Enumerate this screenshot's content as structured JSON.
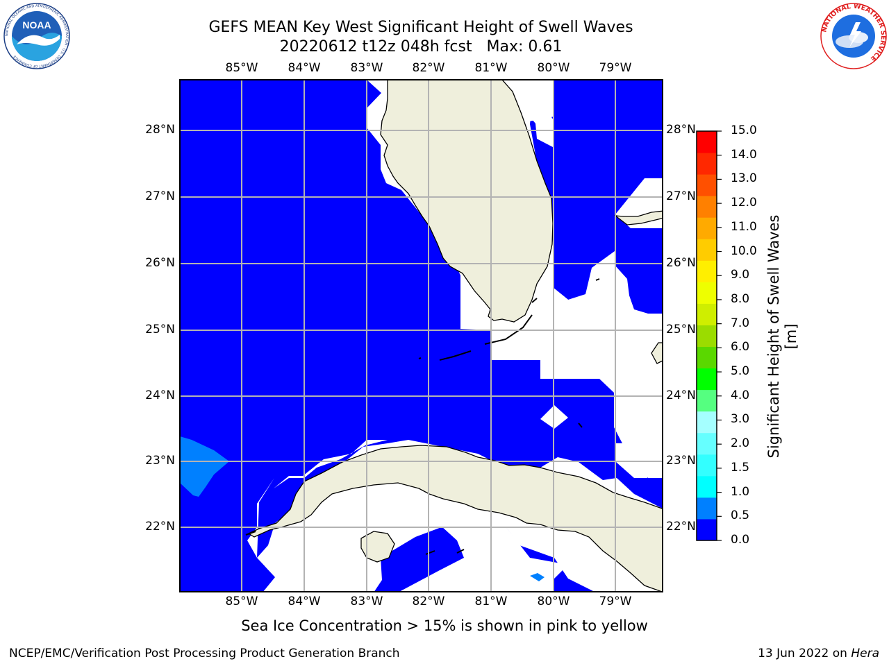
{
  "title": {
    "line1": "GEFS MEAN Key West Significant Height of Swell Waves",
    "line2": "20220612 t12z 048h fcst   Max: 0.61"
  },
  "map": {
    "region": "Key West",
    "colors": {
      "ocean_fill": "#0000ff",
      "land": "#efefdc",
      "grid": "#b3b3b3",
      "field_0_5_to_1": "#0080ff"
    },
    "lon_ticks": [
      "85°W",
      "84°W",
      "83°W",
      "82°W",
      "81°W",
      "80°W",
      "79°W"
    ],
    "lat_ticks": [
      "28°N",
      "27°N",
      "26°N",
      "25°N",
      "24°N",
      "23°N",
      "22°N"
    ]
  },
  "colorbar": {
    "label": "Significant Height of Swell Waves [m]",
    "ticks": [
      "15.0",
      "14.0",
      "13.0",
      "12.0",
      "11.0",
      "10.0",
      "9.0",
      "8.0",
      "7.0",
      "6.0",
      "5.0",
      "4.0",
      "3.0",
      "2.0",
      "1.5",
      "1.0",
      "0.5",
      "0.0"
    ],
    "colors_low_to_high": [
      "#0000ff",
      "#0080ff",
      "#00ffff",
      "#33ffff",
      "#66ffff",
      "#a5ffff",
      "#55ff80",
      "#00ff00",
      "#5ad800",
      "#9bdc00",
      "#cfee00",
      "#eeff00",
      "#ffef00",
      "#ffcc00",
      "#ffaa00",
      "#ff8000",
      "#ff5000",
      "#ff2800",
      "#ff0000"
    ]
  },
  "logos": {
    "left": {
      "icon": "noaa-logo",
      "text": "NOAA",
      "ring_text": "NATIONAL OCEANIC AND ATMOSPHERIC ADMINISTRATION · U.S. DEPARTMENT OF COMMERCE"
    },
    "right": {
      "icon": "nws-logo",
      "ring_text": "NATIONAL WEATHER SERVICE"
    }
  },
  "notes": {
    "ice": "Sea Ice Concentration > 15% is shown in pink to yellow"
  },
  "footer": {
    "left": "NCEP/EMC/Verification Post Processing Product Generation Branch",
    "date": "13 Jun 2022 on ",
    "host": "Hera"
  }
}
